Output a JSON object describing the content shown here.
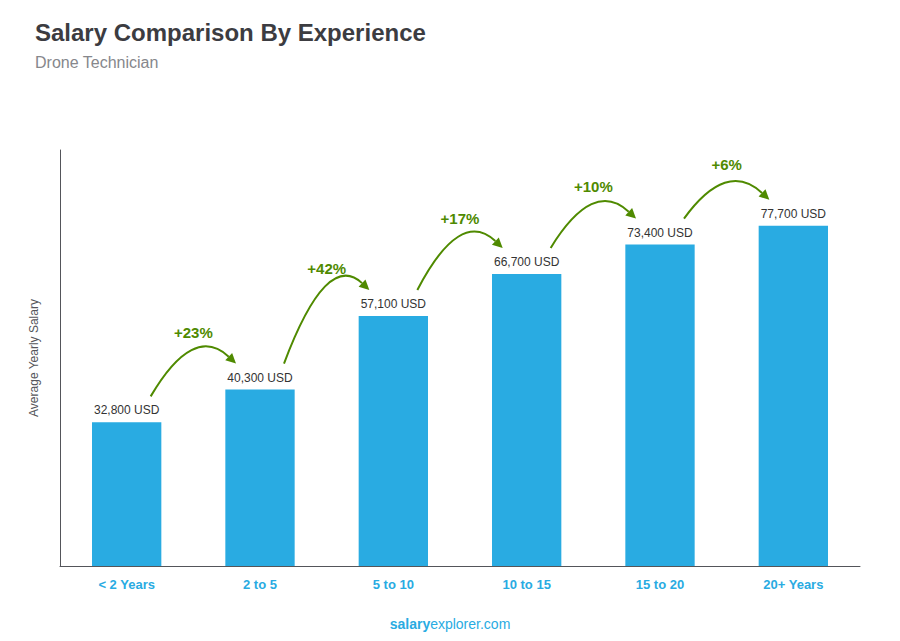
{
  "chart_data": {
    "type": "bar",
    "title": "Salary Comparison By Experience",
    "subtitle": "Drone Technician",
    "categories": [
      "< 2 Years",
      "2 to 5",
      "5 to 10",
      "10 to 15",
      "15 to 20",
      "20+ Years"
    ],
    "values": [
      32800,
      40300,
      57100,
      66700,
      73400,
      77700
    ],
    "value_labels": [
      "32,800 USD",
      "40,300 USD",
      "57,100 USD",
      "66,700 USD",
      "73,400 USD",
      "77,700 USD"
    ],
    "data_labels": true,
    "color": "#29ABE2",
    "ylabel": "Average Yearly Salary",
    "ylim": [
      0,
      95000
    ],
    "tick_labels": "x",
    "grid": false,
    "annotations": [
      "+23%",
      "+42%",
      "+17%",
      "+10%",
      "+6%"
    ],
    "watermark": [
      "salary",
      "explorer.com"
    ]
  }
}
